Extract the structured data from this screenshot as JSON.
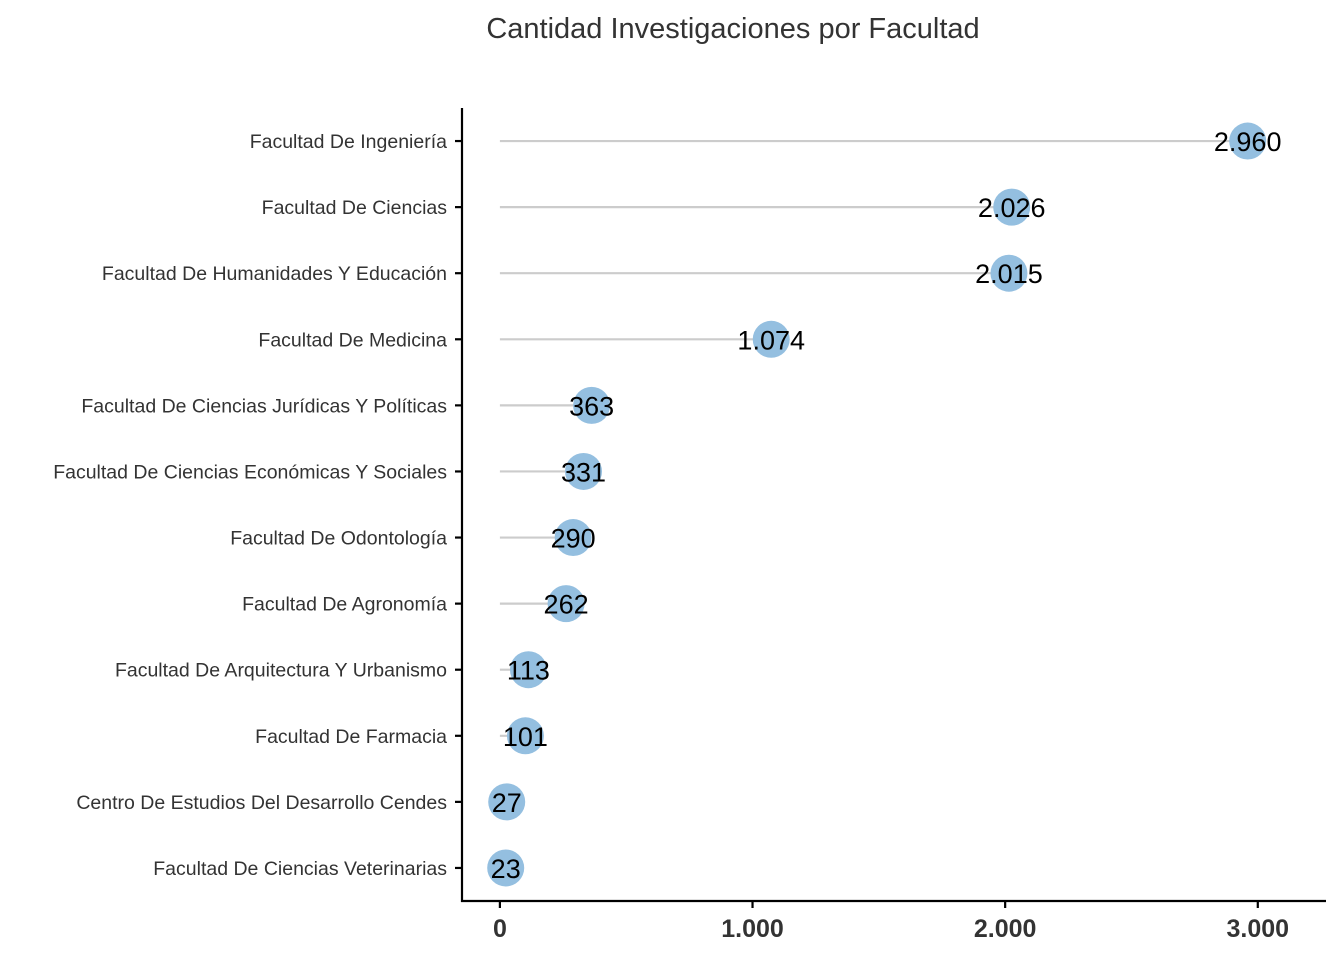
{
  "chart_data": {
    "type": "lollipop",
    "title": "Cantidad Investigaciones por Facultad",
    "xlabel": "",
    "ylabel": "",
    "xlim": [
      -150,
      3270
    ],
    "xticks": [
      0,
      1000,
      2000,
      3000
    ],
    "xtick_labels": [
      "0",
      "1.000",
      "2.000",
      "3.000"
    ],
    "grid": false,
    "legend": "none",
    "colors": {
      "point": "#94bfe0",
      "stem": "#cccccc",
      "axis": "#000000"
    },
    "categories": [
      "Facultad De Ingeniería",
      "Facultad De Ciencias",
      "Facultad De Humanidades Y Educación",
      "Facultad De Medicina",
      "Facultad De Ciencias Jurídicas Y Políticas",
      "Facultad De Ciencias Económicas Y Sociales",
      "Facultad De Odontología",
      "Facultad De Agronomía",
      "Facultad De Arquitectura Y Urbanismo",
      "Facultad De Farmacia",
      "Centro De Estudios Del Desarrollo Cendes",
      "Facultad De Ciencias Veterinarias"
    ],
    "values": [
      2960,
      2026,
      2015,
      1074,
      363,
      331,
      290,
      262,
      113,
      101,
      27,
      23
    ],
    "value_labels": [
      "2.960",
      "2.026",
      "2.015",
      "1.074",
      "363",
      "331",
      "290",
      "262",
      "113",
      "101",
      "27",
      "23"
    ]
  }
}
